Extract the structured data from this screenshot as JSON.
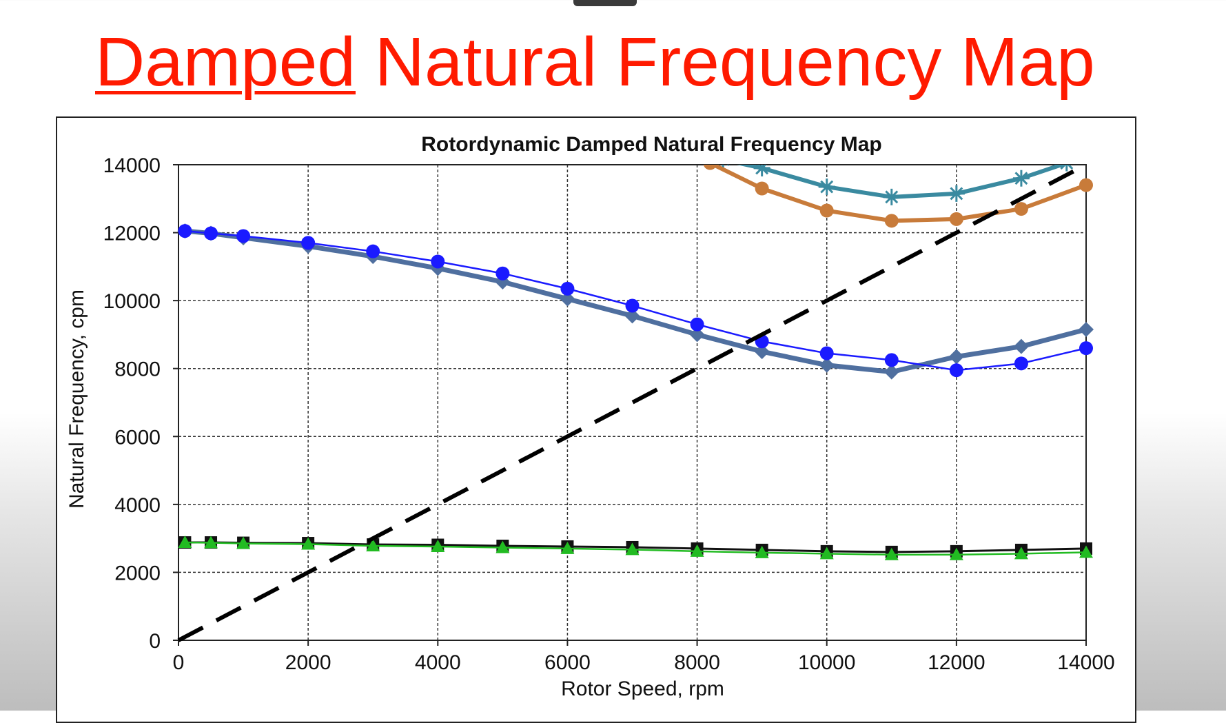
{
  "slide": {
    "title_part1": "Damped",
    "title_part2": " Natural Frequency Map"
  },
  "chart_data": {
    "type": "line",
    "title": "Rotordynamic Damped Natural Frequency Map",
    "xlabel": "Rotor Speed, rpm",
    "ylabel": "Natural Frequency, cpm",
    "xlim": [
      0,
      14000
    ],
    "ylim": [
      0,
      14000
    ],
    "xticks": [
      0,
      2000,
      4000,
      6000,
      8000,
      10000,
      12000,
      14000
    ],
    "yticks": [
      0,
      2000,
      4000,
      6000,
      8000,
      10000,
      12000,
      14000
    ],
    "grid": true,
    "legend": "none",
    "series": [
      {
        "color": "#4f6f9f",
        "marker": "diamond",
        "x": [
          100,
          500,
          1000,
          2000,
          3000,
          4000,
          5000,
          6000,
          7000,
          8000,
          9000,
          10000,
          11000,
          12000,
          13000,
          14000
        ],
        "y": [
          12050,
          11980,
          11850,
          11600,
          11300,
          10950,
          10550,
          10050,
          9550,
          9000,
          8500,
          8100,
          7900,
          8350,
          8650,
          9150
        ]
      },
      {
        "color": "#1a1aff",
        "marker": "circle",
        "x": [
          100,
          500,
          1000,
          2000,
          3000,
          4000,
          5000,
          6000,
          7000,
          8000,
          9000,
          10000,
          11000,
          12000,
          13000,
          14000
        ],
        "y": [
          12050,
          11980,
          11900,
          11700,
          11450,
          11150,
          10800,
          10350,
          9850,
          9300,
          8800,
          8450,
          8250,
          7950,
          8150,
          8600
        ]
      },
      {
        "color": "#3a8aa0",
        "marker": "asterisk",
        "x": [
          8400,
          9000,
          10000,
          11000,
          12000,
          13000,
          13700
        ],
        "y": [
          14150,
          13900,
          13350,
          13050,
          13150,
          13600,
          14050
        ]
      },
      {
        "color": "#c87b3a",
        "marker": "circle",
        "x": [
          8200,
          9000,
          10000,
          11000,
          12000,
          13000,
          14000
        ],
        "y": [
          14050,
          13300,
          12650,
          12350,
          12400,
          12700,
          13400
        ]
      },
      {
        "color": "#111111",
        "marker": "square",
        "x": [
          100,
          500,
          1000,
          2000,
          3000,
          4000,
          5000,
          6000,
          7000,
          8000,
          9000,
          10000,
          11000,
          12000,
          13000,
          14000
        ],
        "y": [
          2880,
          2880,
          2870,
          2860,
          2820,
          2810,
          2780,
          2760,
          2740,
          2700,
          2660,
          2620,
          2600,
          2620,
          2660,
          2700
        ]
      },
      {
        "color": "#22bb22",
        "marker": "triangle",
        "x": [
          100,
          500,
          1000,
          2000,
          3000,
          4000,
          5000,
          6000,
          7000,
          8000,
          9000,
          10000,
          11000,
          12000,
          13000,
          14000
        ],
        "y": [
          2880,
          2870,
          2850,
          2830,
          2780,
          2760,
          2730,
          2700,
          2670,
          2620,
          2580,
          2550,
          2520,
          2520,
          2550,
          2590
        ]
      },
      {
        "color": "#000000",
        "marker": "none",
        "style": "dashed",
        "x": [
          0,
          14000
        ],
        "y": [
          0,
          14000
        ]
      }
    ]
  }
}
